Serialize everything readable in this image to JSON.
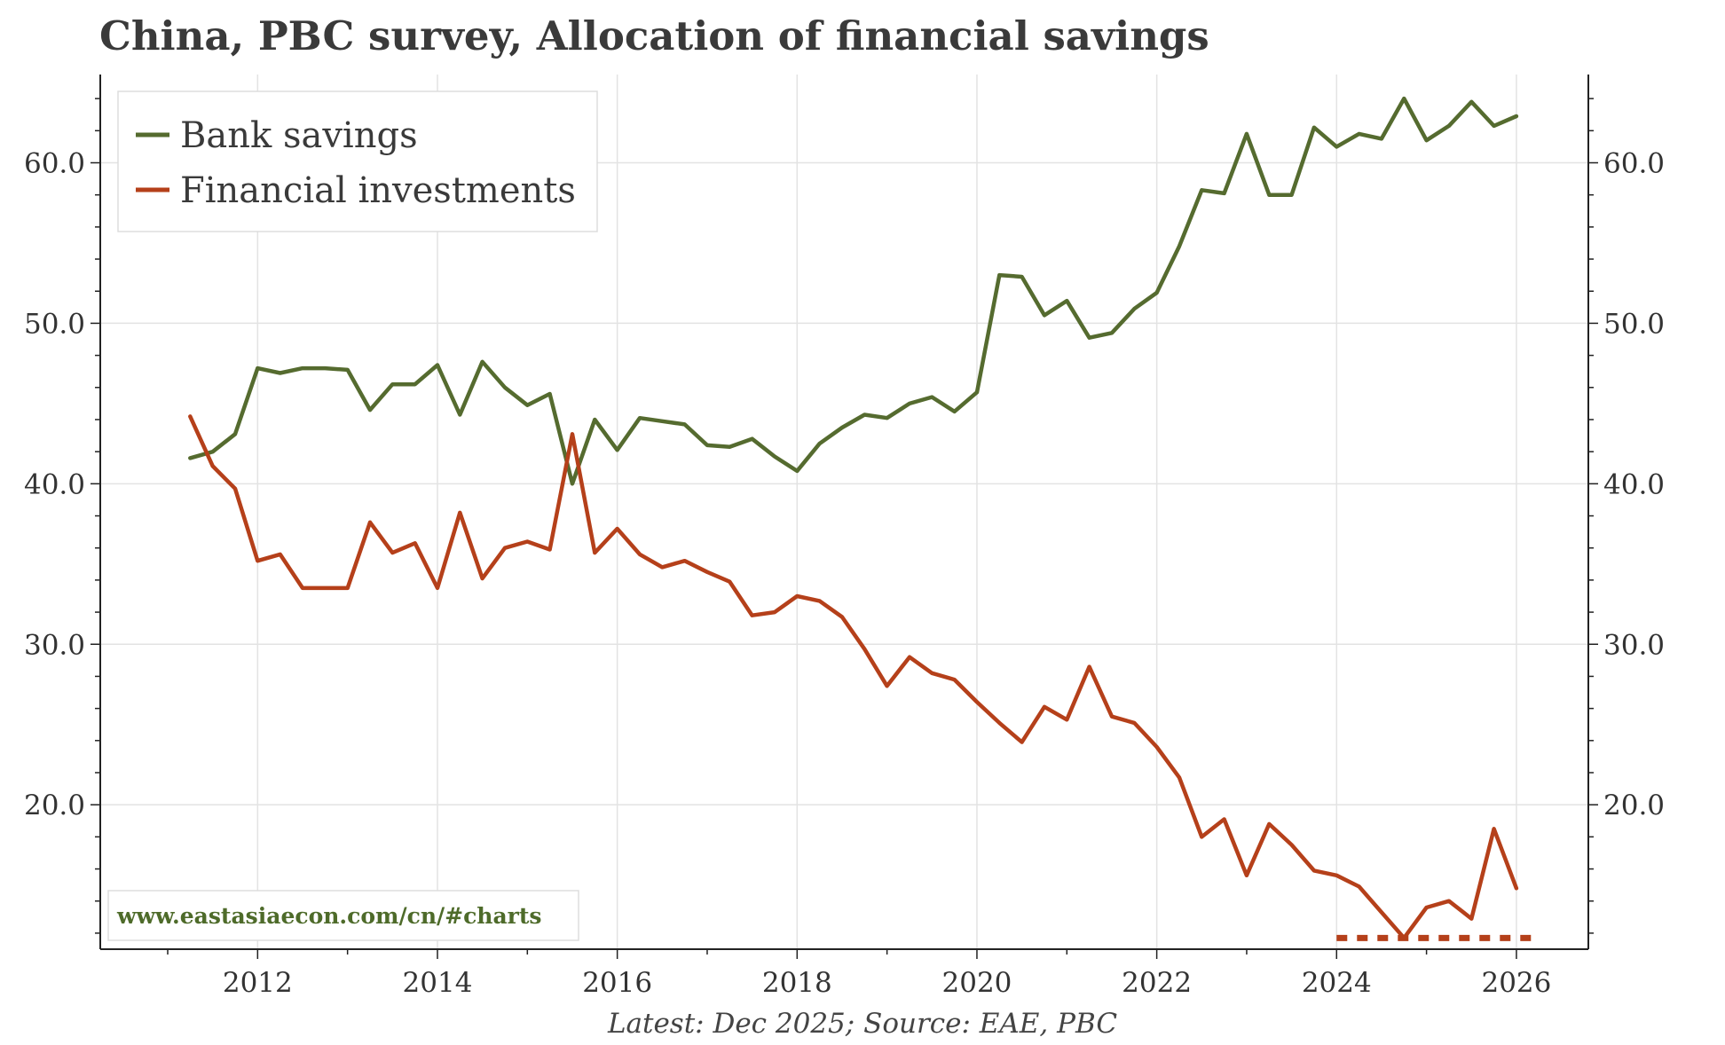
{
  "title": "China, PBC survey, Allocation of financial savings",
  "footer": "Latest: Dec 2025; Source: EAE, PBC",
  "watermark": "www.eastasiaecon.com/cn/#charts",
  "chart_data": {
    "type": "line",
    "title": "China, PBC survey, Allocation of financial savings",
    "xlabel": "",
    "ylabel": "",
    "xlim": [
      2010.25,
      2026.8
    ],
    "ylim": [
      11.0,
      65.5
    ],
    "x_ticks": [
      2012,
      2014,
      2016,
      2018,
      2020,
      2022,
      2024,
      2026
    ],
    "x_tick_labels": [
      "2012",
      "2014",
      "2016",
      "2018",
      "2020",
      "2022",
      "2024",
      "2026"
    ],
    "y_ticks": [
      20,
      30,
      40,
      50,
      60
    ],
    "y_tick_labels": [
      "20.0",
      "30.0",
      "40.0",
      "50.0",
      "60.0"
    ],
    "grid": true,
    "legend_position": "top-left",
    "series": [
      {
        "name": "Bank savings",
        "color": "#556b2f",
        "x": [
          2011.25,
          2011.5,
          2011.75,
          2012.0,
          2012.25,
          2012.5,
          2012.75,
          2013.0,
          2013.25,
          2013.5,
          2013.75,
          2014.0,
          2014.25,
          2014.5,
          2014.75,
          2015.0,
          2015.25,
          2015.5,
          2015.75,
          2016.0,
          2016.25,
          2016.5,
          2016.75,
          2017.0,
          2017.25,
          2017.5,
          2017.75,
          2018.0,
          2018.25,
          2018.5,
          2018.75,
          2019.0,
          2019.25,
          2019.5,
          2019.75,
          2020.0,
          2020.25,
          2020.5,
          2020.75,
          2021.0,
          2021.25,
          2021.5,
          2021.75,
          2022.0,
          2022.25,
          2022.5,
          2022.75,
          2023.0,
          2023.25,
          2023.5,
          2023.75,
          2024.0,
          2024.25,
          2024.5,
          2024.75,
          2025.0,
          2025.25,
          2025.5,
          2025.75,
          2026.0
        ],
        "values": [
          41.6,
          42.0,
          43.1,
          47.2,
          46.9,
          47.2,
          47.2,
          47.1,
          44.6,
          46.2,
          46.2,
          47.4,
          44.3,
          47.6,
          46.0,
          44.9,
          45.6,
          40.0,
          44.0,
          42.1,
          44.1,
          43.9,
          43.7,
          42.4,
          42.3,
          42.8,
          41.7,
          40.8,
          42.5,
          43.5,
          44.3,
          44.1,
          45.0,
          45.4,
          44.5,
          45.7,
          53.0,
          52.9,
          50.5,
          51.4,
          49.1,
          49.4,
          50.9,
          51.9,
          54.8,
          58.3,
          58.1,
          61.8,
          58.0,
          58.0,
          62.2,
          61.0,
          61.8,
          61.5,
          64.0,
          61.4,
          62.3,
          63.8,
          62.3,
          62.9
        ]
      },
      {
        "name": "Financial investments",
        "color": "#b5401a",
        "x": [
          2011.25,
          2011.5,
          2011.75,
          2012.0,
          2012.25,
          2012.5,
          2012.75,
          2013.0,
          2013.25,
          2013.5,
          2013.75,
          2014.0,
          2014.25,
          2014.5,
          2014.75,
          2015.0,
          2015.25,
          2015.5,
          2015.75,
          2016.0,
          2016.25,
          2016.5,
          2016.75,
          2017.0,
          2017.25,
          2017.5,
          2017.75,
          2018.0,
          2018.25,
          2018.5,
          2018.75,
          2019.0,
          2019.25,
          2019.5,
          2019.75,
          2020.0,
          2020.25,
          2020.5,
          2020.75,
          2021.0,
          2021.25,
          2021.5,
          2021.75,
          2022.0,
          2022.25,
          2022.5,
          2022.75,
          2023.0,
          2023.25,
          2023.5,
          2023.75,
          2024.0,
          2024.25,
          2024.5,
          2024.75,
          2025.0,
          2025.25,
          2025.5,
          2025.75,
          2026.0
        ],
        "values": [
          44.2,
          41.1,
          39.7,
          35.2,
          35.6,
          33.5,
          33.5,
          33.5,
          37.6,
          35.7,
          36.3,
          33.5,
          38.2,
          34.1,
          36.0,
          36.4,
          35.9,
          43.1,
          35.7,
          37.2,
          35.6,
          34.8,
          35.2,
          34.5,
          33.9,
          31.8,
          32.0,
          33.0,
          32.7,
          31.7,
          29.7,
          27.4,
          29.2,
          28.2,
          27.8,
          26.4,
          25.1,
          23.9,
          26.1,
          25.3,
          28.6,
          25.5,
          25.1,
          23.6,
          21.7,
          18.0,
          19.1,
          15.6,
          18.8,
          17.5,
          15.9,
          15.6,
          14.9,
          13.3,
          11.7,
          13.6,
          14.0,
          12.9,
          18.5,
          14.8
        ]
      }
    ],
    "reference_line": {
      "style": "dotted",
      "color": "#b5401a",
      "x": [
        2024.0,
        2026.25
      ],
      "value": 11.7
    }
  }
}
